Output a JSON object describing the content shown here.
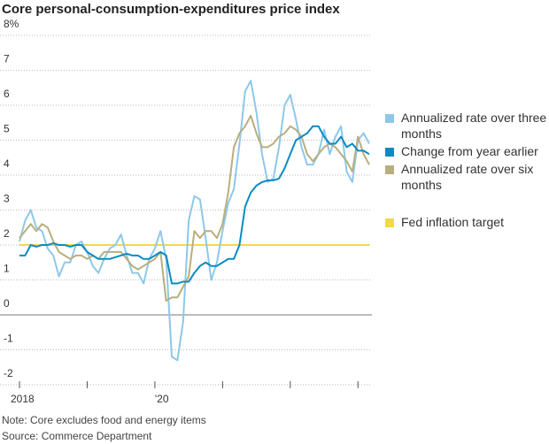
{
  "chart_data": {
    "type": "line",
    "title": "Core personal-consumption-expenditures price index",
    "categories": [
      "2018",
      null,
      null,
      null,
      null,
      null,
      null,
      null,
      null,
      null,
      null,
      null,
      null,
      null,
      null,
      null,
      null,
      null,
      null,
      null,
      null,
      null,
      null,
      null,
      "'20",
      null,
      null,
      null,
      null,
      null,
      null,
      null,
      null,
      null,
      null,
      null,
      null,
      null,
      null,
      null,
      null,
      null,
      null,
      null,
      null,
      null,
      null,
      null,
      null,
      null,
      null,
      null,
      null,
      null,
      null,
      null,
      null,
      null,
      null,
      null,
      null,
      null,
      null
    ],
    "series": [
      {
        "name": "Annualized rate over three months",
        "color": "#8ec8e8",
        "values": [
          2.1,
          2.7,
          3.0,
          2.5,
          2.4,
          1.9,
          1.7,
          1.1,
          1.5,
          1.5,
          2.0,
          2.1,
          1.8,
          1.4,
          1.2,
          1.6,
          1.9,
          2.0,
          2.3,
          1.7,
          1.2,
          1.2,
          0.9,
          1.6,
          1.9,
          2.4,
          1.6,
          -1.2,
          -1.3,
          -0.2,
          2.7,
          3.4,
          3.3,
          2.2,
          1.0,
          1.5,
          2.4,
          3.2,
          3.6,
          4.9,
          6.4,
          6.7,
          5.8,
          4.6,
          3.8,
          3.9,
          4.8,
          6.0,
          6.3,
          5.6,
          4.8,
          4.3,
          4.3,
          4.6,
          5.3,
          4.6,
          5.1,
          5.4,
          4.1,
          3.8,
          5.0,
          5.2,
          4.9
        ]
      },
      {
        "name": "Change from year earlier",
        "color": "#0b8bc2",
        "values": [
          1.7,
          1.7,
          2.0,
          1.95,
          2.0,
          2.0,
          2.05,
          2.0,
          2.0,
          1.95,
          2.0,
          2.0,
          1.8,
          1.7,
          1.6,
          1.6,
          1.6,
          1.65,
          1.7,
          1.75,
          1.7,
          1.7,
          1.6,
          1.6,
          1.7,
          1.8,
          1.7,
          0.9,
          0.9,
          0.95,
          0.95,
          1.2,
          1.4,
          1.5,
          1.4,
          1.4,
          1.5,
          1.6,
          1.6,
          2.0,
          3.1,
          3.5,
          3.7,
          3.8,
          3.85,
          3.85,
          3.9,
          4.2,
          4.6,
          5.0,
          5.1,
          5.2,
          5.4,
          5.4,
          5.1,
          4.9,
          4.9,
          5.1,
          4.8,
          4.9,
          4.7,
          4.7,
          4.6
        ]
      },
      {
        "name": "Annualized rate over six months",
        "color": "#b9ae7e",
        "values": [
          2.2,
          2.4,
          2.6,
          2.4,
          2.6,
          2.5,
          2.1,
          1.8,
          1.7,
          1.6,
          1.7,
          1.7,
          1.6,
          1.7,
          1.6,
          1.8,
          1.8,
          1.8,
          1.8,
          1.6,
          1.4,
          1.3,
          1.4,
          1.5,
          1.6,
          1.8,
          0.4,
          0.5,
          0.5,
          0.8,
          1.1,
          2.4,
          2.2,
          2.4,
          2.4,
          2.2,
          2.6,
          3.5,
          4.8,
          5.2,
          5.4,
          5.7,
          5.2,
          4.8,
          4.8,
          4.9,
          5.1,
          5.2,
          5.4,
          5.3,
          5.1,
          4.6,
          4.4,
          4.6,
          4.8,
          4.9,
          4.8,
          4.6,
          4.4,
          4.1,
          5.1,
          4.6,
          4.3
        ]
      }
    ],
    "reference_line": {
      "name": "Fed inflation target",
      "value": 2,
      "color": "#f2d94a"
    },
    "ylim": [
      -2,
      8
    ],
    "yticks": [
      -2,
      -1,
      0,
      1,
      2,
      3,
      4,
      5,
      6,
      7,
      {
        "value": 8,
        "label": "8%"
      }
    ],
    "grid": true,
    "note": "Note: Core excludes food and energy items",
    "source": "Source: Commerce Department"
  }
}
